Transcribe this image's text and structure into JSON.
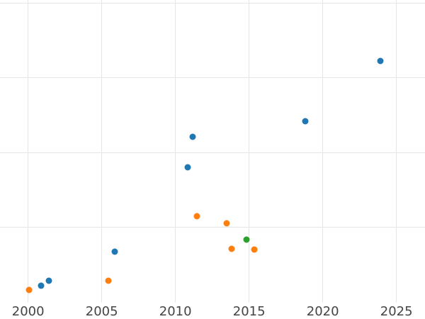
{
  "figure": {
    "background_color": "#ffffff",
    "grid_color": "#e6e6e6",
    "tick_label_color": "#444444"
  },
  "chart_data": {
    "type": "scatter",
    "title": "",
    "xlabel": "",
    "ylabel": "",
    "grid": true,
    "legend": false,
    "note": "y-axis tick labels are cropped out of view; y values given in gridline units (one visible horizontal gridline = 1 unit, 4 gridlines visible)",
    "xlim": [
      1998.091,
      2026.937
    ],
    "ylim": [
      -0.228,
      4.038
    ],
    "x_ticks": [
      2000,
      2005,
      2010,
      2015,
      2020,
      2025
    ],
    "y_gridline_values": [
      1,
      2,
      3,
      4
    ],
    "marker_size_px": 9,
    "series": [
      {
        "name": "blue-series",
        "color": "#1f77b4",
        "points": [
          {
            "x": 2000.9,
            "y": 0.22
          },
          {
            "x": 2001.4,
            "y": 0.28
          },
          {
            "x": 2005.9,
            "y": 0.67
          },
          {
            "x": 2010.85,
            "y": 1.8
          },
          {
            "x": 2011.15,
            "y": 2.21
          },
          {
            "x": 2018.8,
            "y": 2.42
          },
          {
            "x": 2023.9,
            "y": 3.22
          }
        ]
      },
      {
        "name": "orange-series",
        "color": "#ff7f0e",
        "points": [
          {
            "x": 2000.05,
            "y": 0.16
          },
          {
            "x": 2005.45,
            "y": 0.28
          },
          {
            "x": 2011.45,
            "y": 1.15
          },
          {
            "x": 2013.45,
            "y": 1.05
          },
          {
            "x": 2013.8,
            "y": 0.71
          },
          {
            "x": 2015.35,
            "y": 0.7
          }
        ]
      },
      {
        "name": "green-series",
        "color": "#2ca02c",
        "points": [
          {
            "x": 2014.8,
            "y": 0.83
          }
        ]
      }
    ]
  }
}
